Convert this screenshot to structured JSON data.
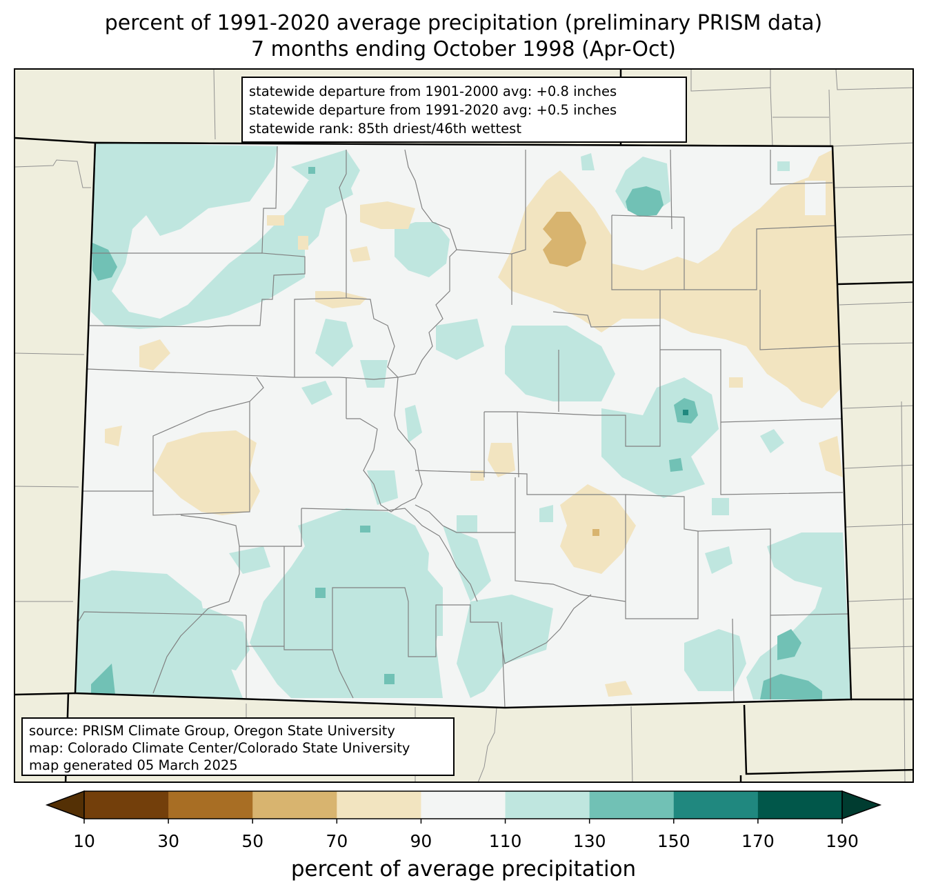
{
  "title": {
    "line1": "percent of 1991-2020 average precipitation (preliminary PRISM data)",
    "line2": "7 months ending October 1998 (Apr-Oct)"
  },
  "stats": {
    "line1": "statewide departure from 1901-2000 avg: +0.8 inches",
    "line2": "statewide departure from 1991-2020 avg: +0.5 inches",
    "line3": "statewide rank: 85th driest/46th wettest"
  },
  "source": {
    "line1": "source: PRISM Climate Group, Oregon State University",
    "line2": "map: Colorado Climate Center/Colorado State University",
    "line3": "map generated 05 March 2025"
  },
  "colorbar": {
    "label": "percent of average precipitation",
    "ticks": [
      "10",
      "30",
      "50",
      "70",
      "90",
      "110",
      "130",
      "150",
      "170",
      "190"
    ],
    "under_color": "#543005",
    "over_color": "#003c30",
    "colors": [
      "#733f0b",
      "#a86e24",
      "#d8b46f",
      "#f2e4c0",
      "#f3f5f4",
      "#bfe6df",
      "#71c1b5",
      "#20887f",
      "#01574a"
    ]
  },
  "map": {
    "background_color": "#efeedd",
    "state_fill": "#f3f5f4",
    "county_line_color": "#808080"
  }
}
